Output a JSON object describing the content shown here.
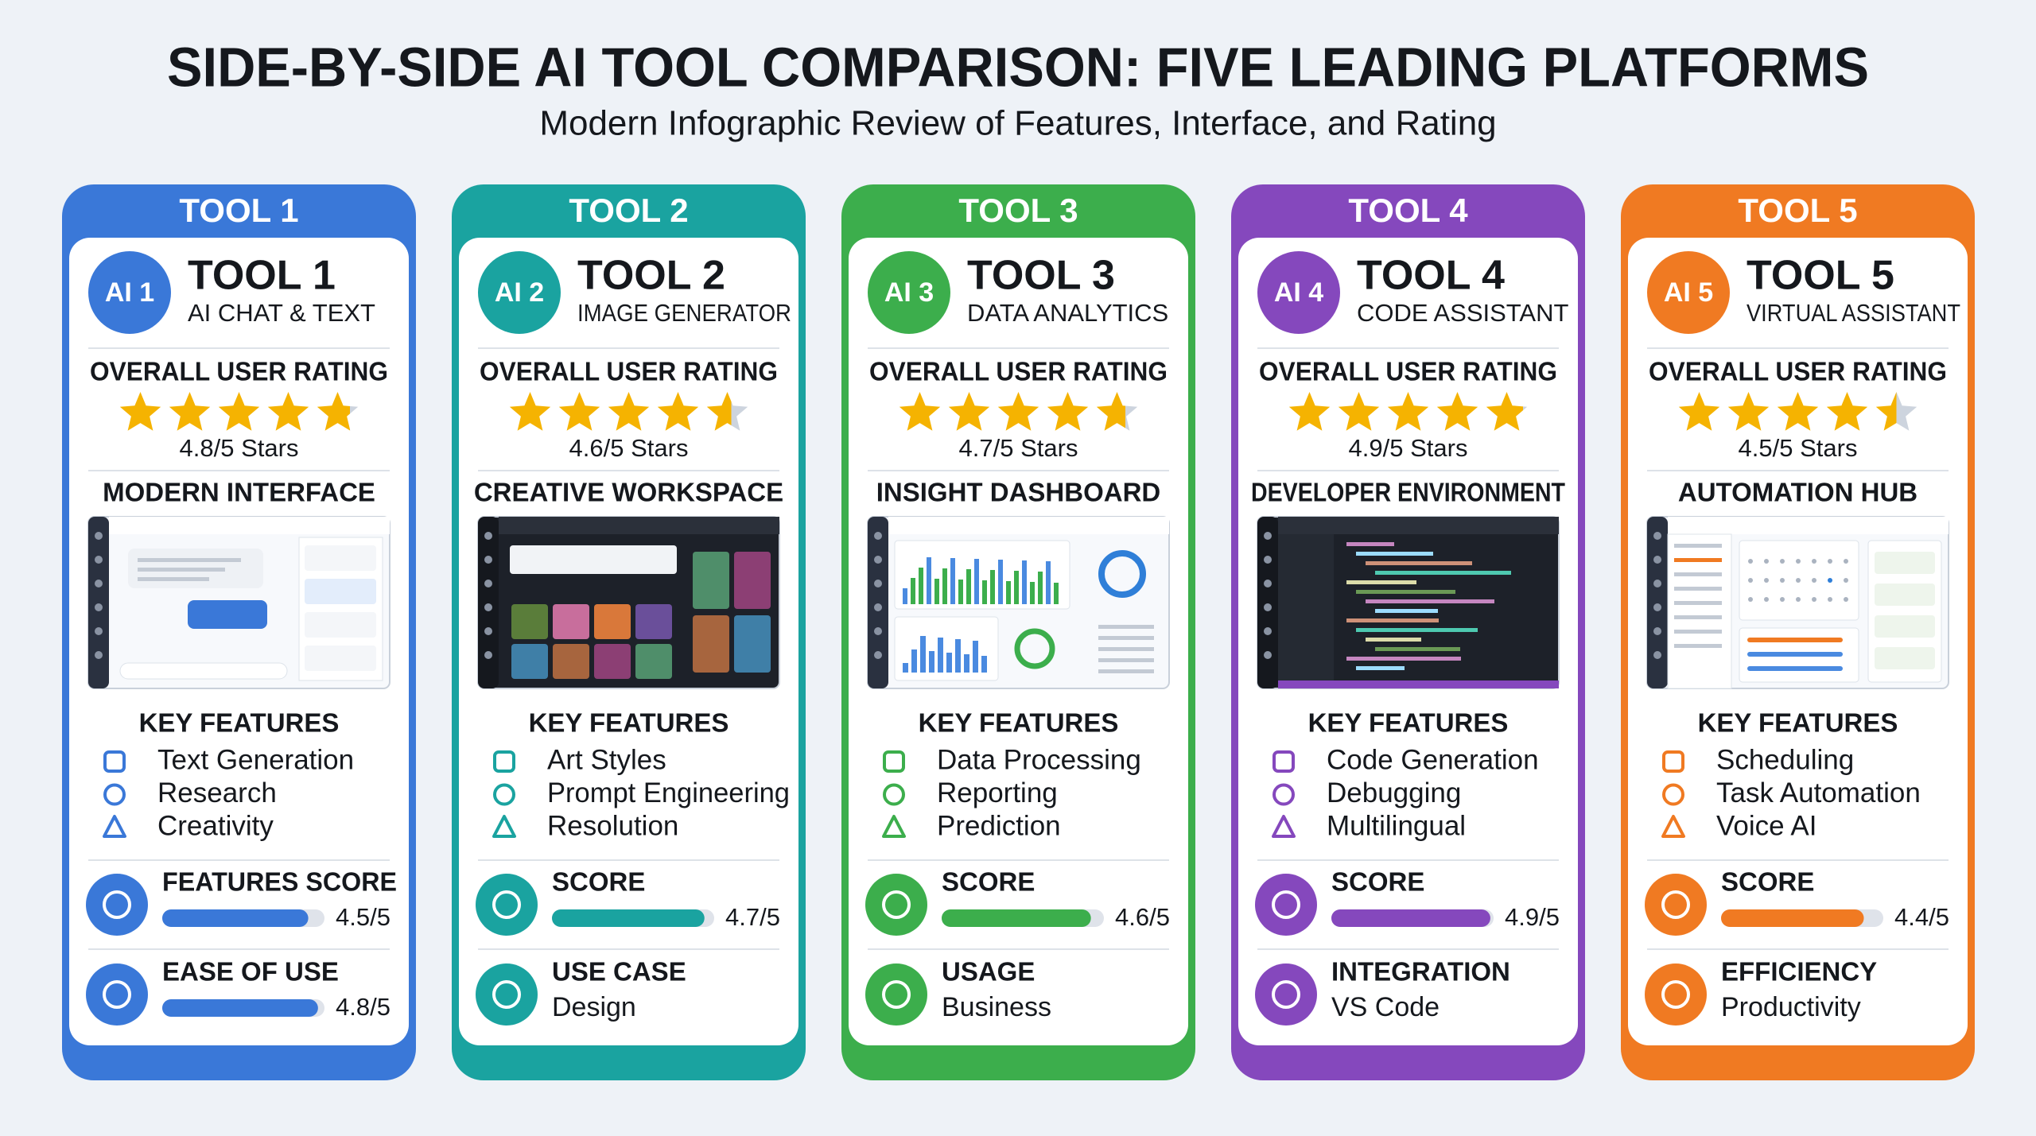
{
  "header": {
    "title": "SIDE-BY-SIDE AI TOOL COMPARISON: FIVE LEADING PLATFORMS",
    "subtitle": "Modern Infographic Review of Features, Interface, and Rating"
  },
  "cards": [
    {
      "tab": "TOOL 1",
      "badge": "AI 1",
      "name": "TOOL 1",
      "subtitle": "AI CHAT & TEXT",
      "color": "#3a78d8",
      "rating_heading": "OVERALL USER RATING",
      "rating": 4.8,
      "rating_max": 5,
      "rating_label": "4.8/5 Stars",
      "preview_heading": "MODERN INTERFACE",
      "preview_theme": "light",
      "features_heading": "KEY FEATURES",
      "features": [
        "Text Generation",
        "Research",
        "Creativity"
      ],
      "metrics": [
        {
          "label": "FEATURES SCORE",
          "value": 4.5,
          "max": 5,
          "value_label": "4.5/5"
        },
        {
          "label": "EASE OF USE",
          "value": 4.8,
          "max": 5,
          "value_label": "4.8/5"
        }
      ]
    },
    {
      "tab": "TOOL 2",
      "badge": "AI 2",
      "name": "TOOL 2",
      "subtitle": "IMAGE GENERATOR",
      "color": "#1aa3a0",
      "rating_heading": "OVERALL USER RATING",
      "rating": 4.6,
      "rating_max": 5,
      "rating_label": "4.6/5 Stars",
      "preview_heading": "CREATIVE WORKSPACE",
      "preview_theme": "dark",
      "features_heading": "KEY FEATURES",
      "features": [
        "Art Styles",
        "Prompt Engineering",
        "Resolution"
      ],
      "metrics": [
        {
          "label": "SCORE",
          "value": 4.7,
          "max": 5,
          "value_label": "4.7/5"
        },
        {
          "label": "USE CASE",
          "text": "Design"
        }
      ]
    },
    {
      "tab": "TOOL 3",
      "badge": "AI 3",
      "name": "TOOL 3",
      "subtitle": "DATA ANALYTICS",
      "color": "#3cae4c",
      "rating_heading": "OVERALL USER RATING",
      "rating": 4.7,
      "rating_max": 5,
      "rating_label": "4.7/5 Stars",
      "preview_heading": "INSIGHT DASHBOARD",
      "preview_theme": "light",
      "features_heading": "KEY FEATURES",
      "features": [
        "Data Processing",
        "Reporting",
        "Prediction"
      ],
      "metrics": [
        {
          "label": "SCORE",
          "value": 4.6,
          "max": 5,
          "value_label": "4.6/5"
        },
        {
          "label": "USAGE",
          "text": "Business"
        }
      ]
    },
    {
      "tab": "TOOL 4",
      "badge": "AI 4",
      "name": "TOOL 4",
      "subtitle": "CODE ASSISTANT",
      "color": "#8548bd",
      "rating_heading": "OVERALL USER RATING",
      "rating": 4.9,
      "rating_max": 5,
      "rating_label": "4.9/5 Stars",
      "preview_heading": "DEVELOPER ENVIRONMENT",
      "preview_theme": "dark",
      "features_heading": "KEY FEATURES",
      "features": [
        "Code Generation",
        "Debugging",
        "Multilingual"
      ],
      "metrics": [
        {
          "label": "SCORE",
          "value": 4.9,
          "max": 5,
          "value_label": "4.9/5"
        },
        {
          "label": "INTEGRATION",
          "text": "VS Code"
        }
      ]
    },
    {
      "tab": "TOOL 5",
      "badge": "AI 5",
      "name": "TOOL 5",
      "subtitle": "VIRTUAL ASSISTANT",
      "color": "#f07a22",
      "rating_heading": "OVERALL USER RATING",
      "rating": 4.5,
      "rating_max": 5,
      "rating_label": "4.5/5 Stars",
      "preview_heading": "AUTOMATION HUB",
      "preview_theme": "light",
      "features_heading": "KEY FEATURES",
      "features": [
        "Scheduling",
        "Task Automation",
        "Voice AI"
      ],
      "metrics": [
        {
          "label": "SCORE",
          "value": 4.4,
          "max": 5,
          "value_label": "4.4/5"
        },
        {
          "label": "EFFICIENCY",
          "text": "Productivity"
        }
      ]
    }
  ]
}
